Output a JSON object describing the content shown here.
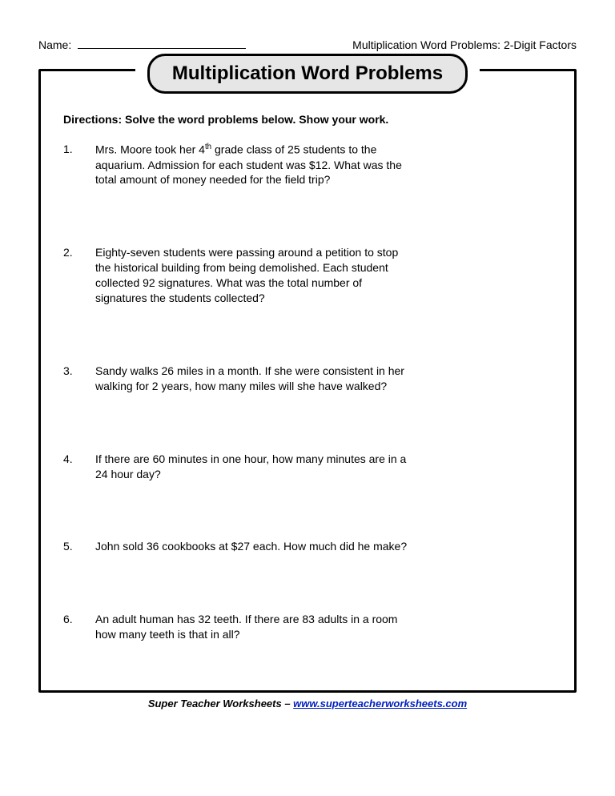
{
  "header": {
    "name_label": "Name:",
    "right_label": "Multiplication Word Problems: 2-Digit Factors"
  },
  "title": "Multiplication Word Problems",
  "directions": "Directions: Solve the word problems below. Show your work.",
  "problems": [
    {
      "num": "1.",
      "text": "Mrs. Moore took her 4th grade class of 25 students to the aquarium. Admission for each student was $12. What was the total amount of money needed for the field trip?"
    },
    {
      "num": "2.",
      "text": "Eighty-seven students were passing around a petition to stop the historical building from being demolished. Each student collected 92 signatures. What was the total number of signatures the students collected?"
    },
    {
      "num": "3.",
      "text": "Sandy walks 26 miles in a month. If she were consistent in her walking for 2 years, how many miles will she have walked?"
    },
    {
      "num": "4.",
      "text": "If there are 60 minutes in one hour, how many minutes are in a 24 hour day?"
    },
    {
      "num": "5.",
      "text": "John sold 36 cookbooks at $27 each. How much did he make?"
    },
    {
      "num": "6.",
      "text": "An adult human has 32 teeth. If there are 83 adults in a room how many teeth is that in all?"
    }
  ],
  "footer": {
    "prefix": "Super Teacher Worksheets – ",
    "link_text": "www.superteacherworksheets.com"
  },
  "colors": {
    "page_bg": "#ffffff",
    "banner_bg": "#e6e6e6",
    "border": "#000000",
    "link": "#0020c0"
  }
}
